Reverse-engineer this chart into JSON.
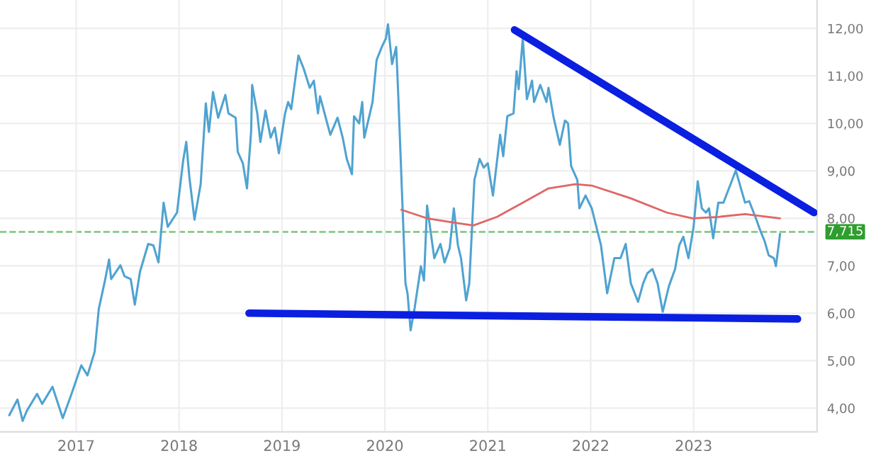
{
  "chart_data": {
    "type": "line",
    "xlim": [
      2016.26,
      2024.2
    ],
    "ylim": [
      3.5,
      12.6
    ],
    "xticks": [
      2017,
      2018,
      2019,
      2020,
      2021,
      2022,
      2023
    ],
    "yticks": [
      {
        "value": 4,
        "label": "4,00"
      },
      {
        "value": 5,
        "label": "5,00"
      },
      {
        "value": 6,
        "label": "6,00"
      },
      {
        "value": 7,
        "label": "7,00"
      },
      {
        "value": 8,
        "label": "8,00"
      },
      {
        "value": 9,
        "label": "9,00"
      },
      {
        "value": 10,
        "label": "10,00"
      },
      {
        "value": 11,
        "label": "11,00"
      },
      {
        "value": 12,
        "label": "12,00"
      }
    ],
    "grid": true,
    "legend": false,
    "marker": "none",
    "line_style": "solid",
    "series": [
      {
        "color": "#4fa3d1",
        "x": [
          2016.35,
          2016.43,
          2016.48,
          2016.52,
          2016.62,
          2016.67,
          2016.77,
          2016.87,
          2016.96,
          2017.05,
          2017.11,
          2017.18,
          2017.22,
          2017.28,
          2017.32,
          2017.34,
          2017.43,
          2017.47,
          2017.53,
          2017.57,
          2017.62,
          2017.7,
          2017.75,
          2017.8,
          2017.85,
          2017.89,
          2017.98,
          2018.04,
          2018.07,
          2018.1,
          2018.15,
          2018.21,
          2018.26,
          2018.29,
          2018.33,
          2018.38,
          2018.45,
          2018.48,
          2018.55,
          2018.57,
          2018.62,
          2018.66,
          2018.7,
          2018.71,
          2018.76,
          2018.79,
          2018.84,
          2018.89,
          2018.93,
          2018.97,
          2019.03,
          2019.06,
          2019.09,
          2019.16,
          2019.21,
          2019.27,
          2019.31,
          2019.35,
          2019.37,
          2019.44,
          2019.47,
          2019.54,
          2019.59,
          2019.63,
          2019.68,
          2019.7,
          2019.75,
          2019.78,
          2019.8,
          2019.88,
          2019.92,
          2019.97,
          2020.01,
          2020.03,
          2020.07,
          2020.11,
          2020.13,
          2020.17,
          2020.2,
          2020.22,
          2020.25,
          2020.29,
          2020.35,
          2020.38,
          2020.41,
          2020.48,
          2020.54,
          2020.58,
          2020.63,
          2020.67,
          2020.71,
          2020.74,
          2020.79,
          2020.82,
          2020.87,
          2020.92,
          2020.96,
          2021.0,
          2021.05,
          2021.12,
          2021.15,
          2021.19,
          2021.25,
          2021.28,
          2021.3,
          2021.34,
          2021.38,
          2021.43,
          2021.45,
          2021.51,
          2021.57,
          2021.59,
          2021.64,
          2021.7,
          2021.75,
          2021.78,
          2021.81,
          2021.87,
          2021.89,
          2021.95,
          2022.01,
          2022.1,
          2022.16,
          2022.23,
          2022.29,
          2022.34,
          2022.39,
          2022.46,
          2022.51,
          2022.55,
          2022.6,
          2022.65,
          2022.7,
          2022.76,
          2022.82,
          2022.86,
          2022.9,
          2022.95,
          2023.0,
          2023.04,
          2023.08,
          2023.12,
          2023.15,
          2023.19,
          2023.24,
          2023.29,
          2023.37,
          2023.41,
          2023.46,
          2023.5,
          2023.54,
          2023.6,
          2023.65,
          2023.69,
          2023.73,
          2023.78,
          2023.8,
          2023.84
        ],
        "values": [
          3.85,
          4.18,
          3.73,
          3.94,
          4.3,
          4.09,
          4.45,
          3.79,
          4.33,
          4.9,
          4.69,
          5.19,
          6.09,
          6.69,
          7.13,
          6.72,
          7.01,
          6.78,
          6.72,
          6.18,
          6.87,
          7.46,
          7.43,
          7.07,
          8.33,
          7.82,
          8.12,
          9.22,
          9.61,
          8.87,
          7.97,
          8.72,
          10.42,
          9.82,
          10.66,
          10.12,
          10.6,
          10.21,
          10.12,
          9.4,
          9.16,
          8.63,
          9.82,
          10.81,
          10.21,
          9.61,
          10.27,
          9.7,
          9.91,
          9.37,
          10.21,
          10.45,
          10.3,
          11.43,
          11.16,
          10.75,
          10.9,
          10.21,
          10.57,
          10.0,
          9.76,
          10.12,
          9.7,
          9.25,
          8.93,
          10.15,
          10.0,
          10.45,
          9.7,
          10.45,
          11.34,
          11.61,
          11.79,
          12.09,
          11.25,
          11.61,
          10.6,
          8.33,
          6.63,
          6.42,
          5.64,
          6.12,
          6.99,
          6.69,
          8.27,
          7.16,
          7.46,
          7.07,
          7.37,
          8.21,
          7.43,
          7.16,
          6.27,
          6.63,
          8.81,
          9.25,
          9.07,
          9.16,
          8.48,
          9.76,
          9.31,
          10.15,
          10.21,
          11.1,
          10.72,
          11.79,
          10.51,
          10.9,
          10.45,
          10.81,
          10.45,
          10.75,
          10.12,
          9.55,
          10.06,
          10.0,
          9.1,
          8.81,
          8.21,
          8.48,
          8.21,
          7.43,
          6.42,
          7.16,
          7.16,
          7.46,
          6.63,
          6.24,
          6.63,
          6.84,
          6.93,
          6.63,
          6.03,
          6.57,
          6.93,
          7.43,
          7.61,
          7.16,
          7.82,
          8.78,
          8.21,
          8.12,
          8.21,
          7.58,
          8.33,
          8.33,
          8.78,
          9.01,
          8.63,
          8.33,
          8.36,
          8.03,
          7.73,
          7.52,
          7.22,
          7.16,
          6.99,
          7.67
        ]
      },
      {
        "color": "#e06666",
        "x": [
          2020.16,
          2020.41,
          2020.67,
          2020.86,
          2021.09,
          2021.34,
          2021.59,
          2021.85,
          2022.01,
          2022.39,
          2022.74,
          2022.99,
          2023.24,
          2023.5,
          2023.84
        ],
        "values": [
          8.18,
          8.0,
          7.91,
          7.85,
          8.03,
          8.33,
          8.63,
          8.72,
          8.69,
          8.42,
          8.12,
          8.0,
          8.03,
          8.09,
          8.0
        ]
      },
      {
        "color": "#0a1fe0",
        "x": [
          2021.26,
          2024.17
        ],
        "values": [
          11.97,
          8.12
        ]
      },
      {
        "color": "#0a1fe0",
        "x": [
          2018.68,
          2024.01
        ],
        "values": [
          6.0,
          5.88
        ]
      }
    ],
    "ref_lines": [
      {
        "axis": "y",
        "value": 7.715,
        "label": "7,715",
        "color": "#7cc47c",
        "line_style": "dashed"
      }
    ]
  }
}
